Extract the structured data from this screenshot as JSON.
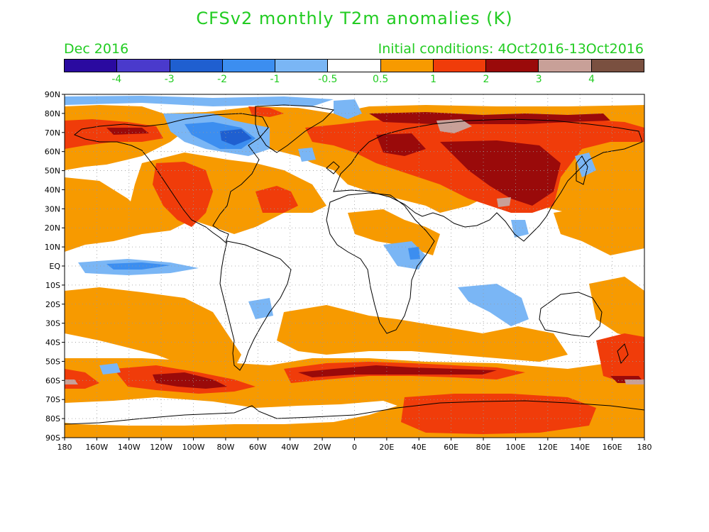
{
  "title": "CFSv2 monthly T2m anomalies (K)",
  "valid_month": "Dec 2016",
  "initial_conditions": "Initial conditions: 4Oct2016-13Oct2016",
  "colorbar": {
    "colors": [
      "#2a0aa0",
      "#4a3acc",
      "#1f5fd0",
      "#3c8ef0",
      "#7ab6f5",
      "#ffffff",
      "#f79a00",
      "#f03c0a",
      "#9a0a0a",
      "#c8a098",
      "#7a5040"
    ],
    "labels": [
      "-4",
      "-3",
      "-2",
      "-1",
      "-0.5",
      "0.5",
      "1",
      "2",
      "3",
      "4"
    ]
  },
  "axes": {
    "lat_labels": [
      "90N",
      "80N",
      "70N",
      "60N",
      "50N",
      "40N",
      "30N",
      "20N",
      "10N",
      "EQ",
      "10S",
      "20S",
      "30S",
      "40S",
      "50S",
      "60S",
      "70S",
      "80S",
      "90S"
    ],
    "lon_labels": [
      "180",
      "160W",
      "140W",
      "120W",
      "100W",
      "80W",
      "60W",
      "40W",
      "20W",
      "0",
      "20E",
      "40E",
      "60E",
      "80E",
      "100E",
      "120E",
      "140E",
      "160E",
      "180"
    ]
  },
  "colors": {
    "text_green": "#22cc22",
    "orange": "#f79a00",
    "red": "#f03c0a",
    "darkred": "#9a0a0a",
    "rose": "#c8a098",
    "lightblue": "#7ab6f5",
    "blue": "#3c8ef0",
    "midblue": "#1f5fd0"
  }
}
